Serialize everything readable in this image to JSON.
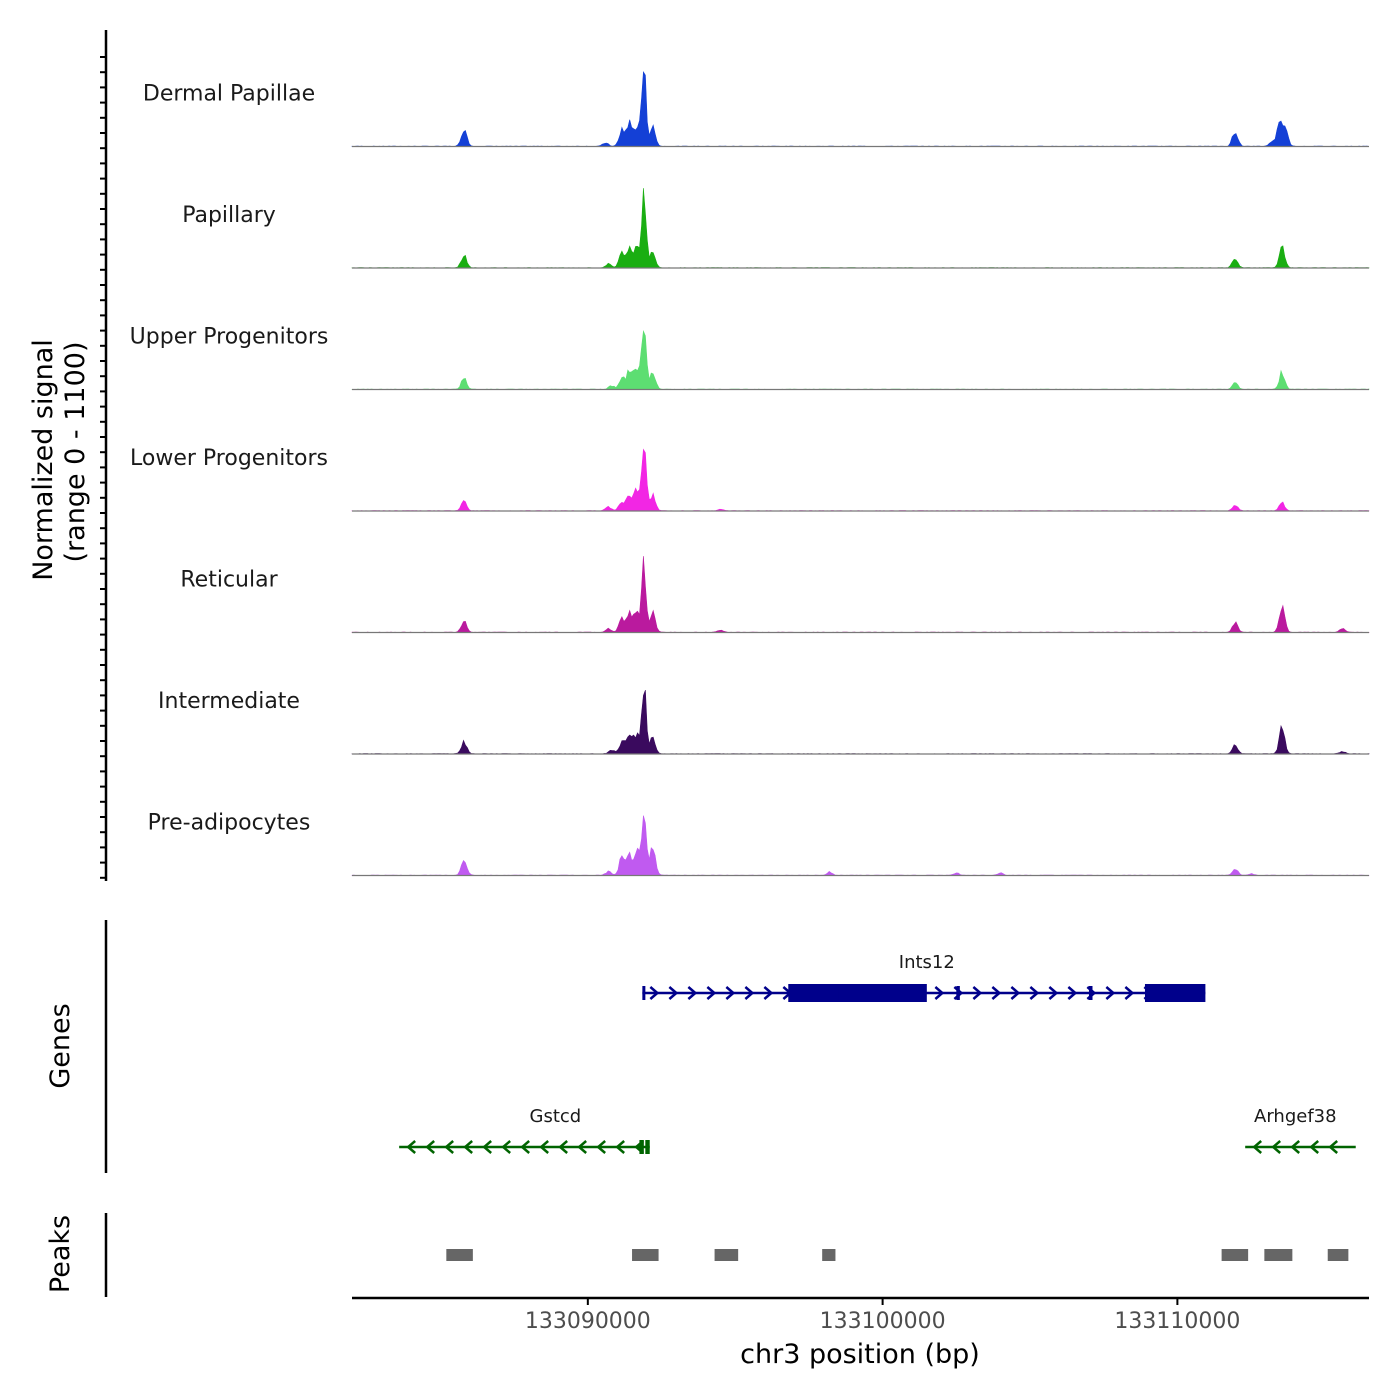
{
  "chart_data": {
    "type": "area",
    "title": "",
    "ylabel_line1": "Normalized signal",
    "ylabel_line2": "(range 0 - 1100)",
    "ylim": [
      0,
      1100
    ],
    "xlabel": "chr3 position (bp)",
    "xlim": [
      133082000,
      133116500
    ],
    "xticks": [
      133090000,
      133100000,
      133110000
    ],
    "xtick_labels": [
      "133090000",
      "133100000",
      "133110000"
    ],
    "genes_label": "Genes",
    "peaks_label": "Peaks",
    "tracks": [
      {
        "name": "Dermal Papillae",
        "color": "#1440D6",
        "peaks": [
          [
            133085800,
            0.23
          ],
          [
            133090600,
            0.05
          ],
          [
            133091150,
            0.2
          ],
          [
            133091400,
            0.3
          ],
          [
            133091650,
            0.25
          ],
          [
            133091900,
            1.0
          ],
          [
            133092200,
            0.25
          ],
          [
            133111960,
            0.2
          ],
          [
            133113200,
            0.05
          ],
          [
            133113450,
            0.25
          ],
          [
            133113650,
            0.25
          ]
        ]
      },
      {
        "name": "Papillary",
        "color": "#1AAE12",
        "peaks": [
          [
            133085800,
            0.17
          ],
          [
            133090700,
            0.05
          ],
          [
            133091150,
            0.2
          ],
          [
            133091400,
            0.25
          ],
          [
            133091650,
            0.27
          ],
          [
            133091900,
            1.0
          ],
          [
            133092200,
            0.2
          ],
          [
            133111960,
            0.12
          ],
          [
            133113550,
            0.27
          ]
        ]
      },
      {
        "name": "Upper Progenitors",
        "color": "#5DDE72",
        "peaks": [
          [
            133085800,
            0.14
          ],
          [
            133090800,
            0.05
          ],
          [
            133091150,
            0.15
          ],
          [
            133091400,
            0.22
          ],
          [
            133091650,
            0.27
          ],
          [
            133091900,
            0.88
          ],
          [
            133092200,
            0.22
          ],
          [
            133111960,
            0.08
          ],
          [
            133113550,
            0.22
          ]
        ]
      },
      {
        "name": "Lower Progenitors",
        "color": "#F226E4",
        "peaks": [
          [
            133085800,
            0.13
          ],
          [
            133090700,
            0.05
          ],
          [
            133091150,
            0.12
          ],
          [
            133091400,
            0.2
          ],
          [
            133091650,
            0.25
          ],
          [
            133091900,
            0.83
          ],
          [
            133092200,
            0.2
          ],
          [
            133094500,
            0.02
          ],
          [
            133111960,
            0.07
          ],
          [
            133113550,
            0.1
          ]
        ]
      },
      {
        "name": "Reticular",
        "color": "#BA1A9E",
        "peaks": [
          [
            133085800,
            0.14
          ],
          [
            133090700,
            0.05
          ],
          [
            133091150,
            0.18
          ],
          [
            133091400,
            0.25
          ],
          [
            133091650,
            0.25
          ],
          [
            133091900,
            0.88
          ],
          [
            133092200,
            0.25
          ],
          [
            133094500,
            0.03
          ],
          [
            133111960,
            0.12
          ],
          [
            133113550,
            0.33
          ],
          [
            133115600,
            0.05
          ]
        ]
      },
      {
        "name": "Intermediate",
        "color": "#3A0A5E",
        "peaks": [
          [
            133085800,
            0.15
          ],
          [
            133090800,
            0.05
          ],
          [
            133091150,
            0.15
          ],
          [
            133091400,
            0.25
          ],
          [
            133091650,
            0.25
          ],
          [
            133091900,
            0.88
          ],
          [
            133092200,
            0.2
          ],
          [
            133111960,
            0.12
          ],
          [
            133113550,
            0.35
          ],
          [
            133115600,
            0.03
          ]
        ]
      },
      {
        "name": "Pre-adipocytes",
        "color": "#C05AF0",
        "peaks": [
          [
            133085800,
            0.2
          ],
          [
            133090700,
            0.05
          ],
          [
            133091150,
            0.22
          ],
          [
            133091400,
            0.25
          ],
          [
            133091650,
            0.3
          ],
          [
            133091900,
            0.85
          ],
          [
            133092200,
            0.35
          ],
          [
            133098200,
            0.04
          ],
          [
            133102500,
            0.03
          ],
          [
            133104000,
            0.03
          ],
          [
            133111960,
            0.08
          ],
          [
            133112500,
            0.02
          ]
        ]
      }
    ],
    "genes": [
      {
        "name": "Ints12",
        "strand": "+",
        "color": "#00008B",
        "start": 133091850,
        "end": 133110950,
        "row": 1,
        "exons": [
          [
            133096800,
            133101500
          ],
          [
            133098500,
            133098700
          ],
          [
            133101000,
            133101400
          ],
          [
            133102500,
            133102620
          ],
          [
            133107000,
            133107120
          ],
          [
            133108900,
            133110950
          ],
          [
            133091850,
            133091950
          ]
        ]
      },
      {
        "name": "Gstcd",
        "strand": "-",
        "color": "#006400",
        "start": 133083600,
        "end": 133092100,
        "row": 2,
        "exons": [
          [
            133091750,
            133091900
          ],
          [
            133091950,
            133092100
          ]
        ]
      },
      {
        "name": "Arhgef38",
        "strand": "-",
        "color": "#006400",
        "start": 133112300,
        "end": 133116050,
        "row": 2,
        "exons": []
      }
    ],
    "peaks": [
      [
        133085200,
        133086100
      ],
      [
        133091500,
        133092400
      ],
      [
        133094300,
        133095100
      ],
      [
        133097950,
        133098400
      ],
      [
        133111500,
        133112400
      ],
      [
        133112950,
        133113900
      ],
      [
        133115100,
        133115800
      ]
    ],
    "peak_color": "#666666"
  }
}
